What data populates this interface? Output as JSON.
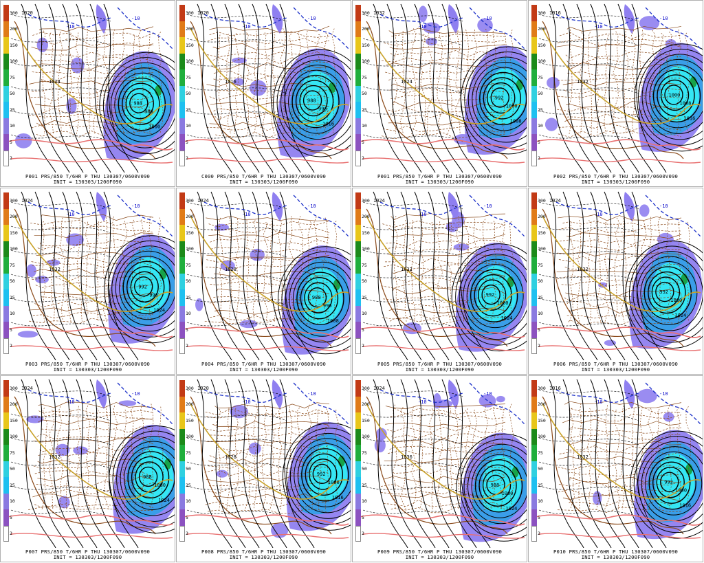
{
  "panels": [
    {
      "member": "P001",
      "caption": "P001 PRS/850 T/6HR P THU 130307/0600V090",
      "init": "INIT = 130303/1200F090",
      "low_label": "988",
      "high_label": "1024",
      "extra_labels": [
        "996",
        "1000"
      ],
      "cold_label": "1020",
      "blue_labels": [
        "-10",
        "-10"
      ]
    },
    {
      "member": "C000",
      "caption": "C000 PRS/850 T/6HR P THU 130307/0600V090",
      "init": "INIT = 130303/1200F090",
      "low_label": "988",
      "high_label": "1016",
      "extra_labels": [
        "996",
        "1016"
      ],
      "cold_label": "1020",
      "blue_labels": [
        "-10",
        "-10"
      ]
    },
    {
      "member": "P001",
      "caption": "P001 PRS/850 T/6HR P THU 130307/0600V090",
      "init": "INIT = 130303/1200F090",
      "low_label": "992",
      "high_label": "1024",
      "extra_labels": [
        "1000",
        "1008"
      ],
      "cold_label": "1032",
      "blue_labels": [
        "-10",
        "-10"
      ]
    },
    {
      "member": "P002",
      "caption": "P002 PRS/850 T/6HR P THU 130307/0600V090",
      "init": "INIT = 130303/1200F090",
      "low_label": "1000",
      "high_label": "1032",
      "extra_labels": [
        "1008",
        "1016"
      ],
      "cold_label": "1016",
      "blue_labels": [
        "-10",
        "-10"
      ]
    },
    {
      "member": "P003",
      "caption": "P003 PRS/850 T/6HR P THU 130307/0600V090",
      "init": "INIT = 130303/1200F090",
      "low_label": "992",
      "high_label": "1032",
      "extra_labels": [
        "996",
        "1024"
      ],
      "cold_label": "1024",
      "blue_labels": [
        "-10",
        "-10"
      ]
    },
    {
      "member": "P004",
      "caption": "P004 PRS/850 T/6HR P THU 130307/0600V090",
      "init": "INIT = 130303/1200F090",
      "low_label": "988",
      "high_label": "1028",
      "extra_labels": [
        "996",
        "1008"
      ],
      "cold_label": "1024",
      "blue_labels": [
        "-10",
        "-10"
      ]
    },
    {
      "member": "P005",
      "caption": "P005 PRS/850 T/6HR P THU 130307/0600V090",
      "init": "INIT = 130303/1200F090",
      "low_label": "992",
      "high_label": "1032",
      "extra_labels": [
        "1000",
        "1024"
      ],
      "cold_label": "1024",
      "blue_labels": [
        "-10",
        "-10"
      ]
    },
    {
      "member": "P006",
      "caption": "P006 PRS/850 T/6HR P THU 130307/0600V090",
      "init": "INIT = 130303/1200F090",
      "low_label": "992",
      "high_label": "1032",
      "extra_labels": [
        "1000",
        "1024"
      ],
      "cold_label": "1024",
      "blue_labels": [
        "-10",
        "-10"
      ]
    },
    {
      "member": "P007",
      "caption": "P007 PRS/850 T/6HR P THU 130307/0600V090",
      "init": "INIT = 130303/1200F090",
      "low_label": "988",
      "high_label": "1032",
      "extra_labels": [
        "1000",
        "1024"
      ],
      "cold_label": "1024",
      "blue_labels": [
        "-10",
        "-10"
      ]
    },
    {
      "member": "P008",
      "caption": "P008 PRS/850 T/6HR P THU 130307/0600V090",
      "init": "INIT = 130303/1200F090",
      "low_label": "992",
      "high_label": "1028",
      "extra_labels": [
        "1000",
        "1016"
      ],
      "cold_label": "1020",
      "blue_labels": [
        "-10",
        "-10"
      ]
    },
    {
      "member": "P009",
      "caption": "P009 PRS/850 T/6HR P THU 130307/0600V090",
      "init": "INIT = 130303/1200F090",
      "low_label": "988",
      "high_label": "1036",
      "extra_labels": [
        "1000",
        "1024"
      ],
      "cold_label": "1024",
      "blue_labels": [
        "-10",
        "-10"
      ]
    },
    {
      "member": "P010",
      "caption": "P010 PRS/850 T/6HR P THU 130307/0600V090",
      "init": "INIT = 130303/1200F090",
      "low_label": "992",
      "high_label": "1032",
      "extra_labels": [
        "1000",
        "1016"
      ],
      "cold_label": "1016",
      "blue_labels": [
        "-10",
        "-10"
      ]
    }
  ],
  "colorbar": {
    "ticks": [
      "300",
      "200",
      "150",
      "100",
      "75",
      "50",
      "25",
      "10",
      "5",
      "2"
    ],
    "colors": [
      "#c23a16",
      "#e07b18",
      "#e8c619",
      "#1c8a1a",
      "#1fae3c",
      "#2fd0e0",
      "#1ec0f0",
      "#8a7ae0",
      "#8c52c0",
      "#ffffff"
    ]
  },
  "colors": {
    "precip_light": "#8f7ff0",
    "precip_mid": "#3a9ee8",
    "precip_heavy": "#35e6f4",
    "precip_extreme": "#17a34a",
    "isobar": "#000000",
    "thickness_warm": "#e87070",
    "thickness_mid": "#c9a22a",
    "thickness_cold": "#1a2fc8",
    "borders": "#8a4a1a"
  }
}
